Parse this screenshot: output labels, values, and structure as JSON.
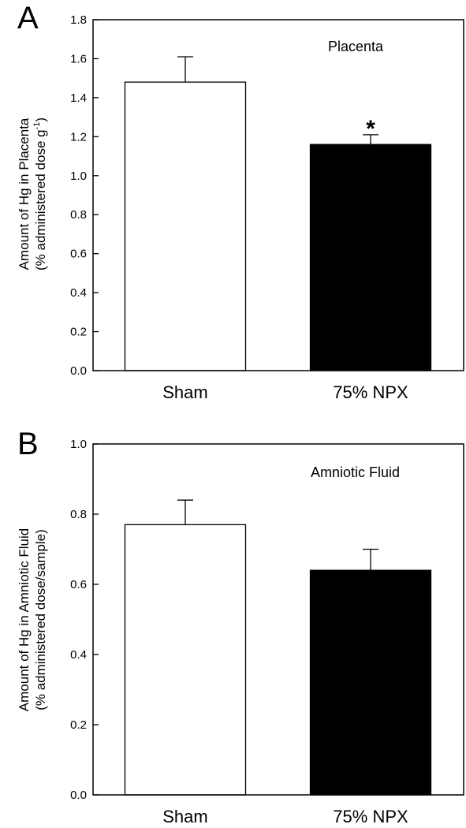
{
  "chart_data": [
    {
      "type": "bar",
      "panel_letter": "A",
      "annotation": "Placenta",
      "categories": [
        "Sham",
        "75% NPX"
      ],
      "values": [
        1.48,
        1.16
      ],
      "errors": [
        0.13,
        0.05
      ],
      "bar_colors": [
        "#ffffff",
        "#000000"
      ],
      "significance": [
        "",
        "*"
      ],
      "ylabel_line1": "Amount of Hg in Placenta",
      "ylabel_line2": "(% administered dose g",
      "ylabel_sup": "-1",
      "ylabel_close": ")",
      "ylim": [
        0,
        1.8
      ],
      "yticks": [
        "0.0",
        "0.2",
        "0.4",
        "0.6",
        "0.8",
        "1.0",
        "1.2",
        "1.4",
        "1.6",
        "1.8"
      ]
    },
    {
      "type": "bar",
      "panel_letter": "B",
      "annotation": "Amniotic Fluid",
      "categories": [
        "Sham",
        "75% NPX"
      ],
      "values": [
        0.77,
        0.64
      ],
      "errors": [
        0.07,
        0.06
      ],
      "bar_colors": [
        "#ffffff",
        "#000000"
      ],
      "significance": [
        "",
        ""
      ],
      "ylabel_line1": "Amount of Hg in Amniotic Fluid",
      "ylabel_line2": "(% administered dose/sample)",
      "ylim": [
        0,
        1.0
      ],
      "yticks": [
        "0.0",
        "0.2",
        "0.4",
        "0.6",
        "0.8",
        "1.0"
      ]
    }
  ]
}
